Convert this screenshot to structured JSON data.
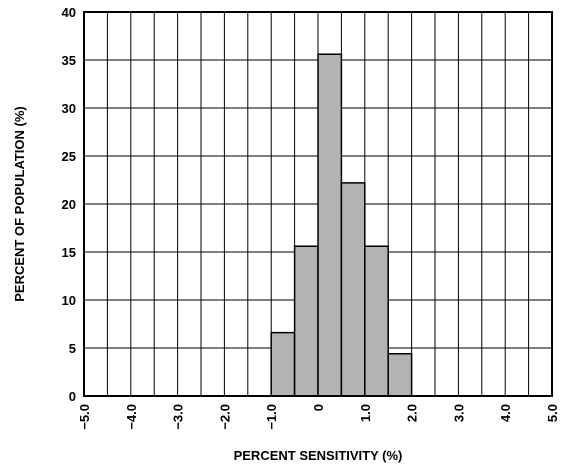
{
  "chart_data": {
    "type": "bar",
    "title": "",
    "xlabel": "PERCENT SENSITIVITY (%)",
    "ylabel": "PERCENT OF POPULATION (%)",
    "xlim": [
      -5.0,
      5.0
    ],
    "ylim": [
      0,
      40
    ],
    "grid": true,
    "x_ticks": [
      "-5.0",
      "-4.0",
      "-3.0",
      "-2.0",
      "-1.0",
      "0",
      "1.0",
      "2.0",
      "3.0",
      "4.0",
      "5.0"
    ],
    "y_ticks": [
      "0",
      "5",
      "10",
      "15",
      "20",
      "25",
      "30",
      "35",
      "40"
    ],
    "bin_width": 0.5,
    "bars": [
      {
        "x0": -1.0,
        "value": 6.6
      },
      {
        "x0": -0.5,
        "value": 15.6
      },
      {
        "x0": 0.0,
        "value": 35.6
      },
      {
        "x0": 0.5,
        "value": 22.2
      },
      {
        "x0": 1.0,
        "value": 15.6
      },
      {
        "x0": 1.5,
        "value": 4.4
      }
    ],
    "colors": {
      "bar_fill": "#b3b3b3",
      "bar_stroke": "#000000",
      "grid": "#000000"
    }
  }
}
